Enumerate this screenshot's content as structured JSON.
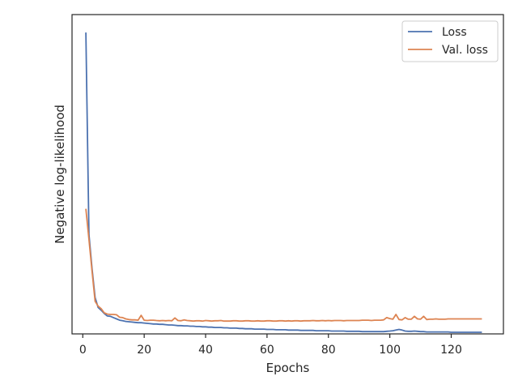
{
  "chart_data": {
    "type": "line",
    "title": "",
    "xlabel": "Epochs",
    "ylabel": "Negative log-likelihood",
    "xlim": [
      -3.5,
      137
    ],
    "ylim": [
      0,
      1
    ],
    "yticks_visible": false,
    "xticks": [
      0,
      20,
      40,
      60,
      80,
      100,
      120
    ],
    "grid": false,
    "legend": {
      "placement": "top-right"
    },
    "x": [
      1,
      2,
      3,
      4,
      5,
      6,
      7,
      8,
      9,
      10,
      11,
      12,
      13,
      14,
      15,
      16,
      17,
      18,
      19,
      20,
      21,
      22,
      23,
      24,
      25,
      26,
      27,
      28,
      29,
      30,
      31,
      32,
      33,
      34,
      35,
      36,
      37,
      38,
      39,
      40,
      41,
      42,
      43,
      44,
      45,
      46,
      47,
      48,
      49,
      50,
      51,
      52,
      53,
      54,
      55,
      56,
      57,
      58,
      59,
      60,
      61,
      62,
      63,
      64,
      65,
      66,
      67,
      68,
      69,
      70,
      71,
      72,
      73,
      74,
      75,
      76,
      77,
      78,
      79,
      80,
      81,
      82,
      83,
      84,
      85,
      86,
      87,
      88,
      89,
      90,
      91,
      92,
      93,
      94,
      95,
      96,
      97,
      98,
      99,
      100,
      101,
      102,
      103,
      104,
      105,
      106,
      107,
      108,
      109,
      110,
      111,
      112,
      113,
      114,
      115,
      116,
      117,
      118,
      119,
      120,
      121,
      122,
      123,
      124,
      125,
      126,
      127,
      128,
      129,
      130
    ],
    "series": [
      {
        "name": "Loss",
        "color": "#4c72b0",
        "values": [
          0.944,
          0.312,
          0.205,
          0.114,
          0.083,
          0.074,
          0.064,
          0.056,
          0.055,
          0.051,
          0.047,
          0.043,
          0.041,
          0.039,
          0.038,
          0.037,
          0.036,
          0.035,
          0.035,
          0.034,
          0.033,
          0.032,
          0.031,
          0.031,
          0.03,
          0.03,
          0.029,
          0.028,
          0.028,
          0.027,
          0.026,
          0.026,
          0.025,
          0.025,
          0.024,
          0.024,
          0.023,
          0.023,
          0.022,
          0.022,
          0.021,
          0.021,
          0.02,
          0.02,
          0.02,
          0.019,
          0.019,
          0.018,
          0.018,
          0.018,
          0.017,
          0.017,
          0.016,
          0.016,
          0.016,
          0.015,
          0.015,
          0.015,
          0.015,
          0.014,
          0.014,
          0.014,
          0.013,
          0.013,
          0.013,
          0.013,
          0.012,
          0.012,
          0.012,
          0.012,
          0.011,
          0.011,
          0.011,
          0.011,
          0.011,
          0.01,
          0.01,
          0.01,
          0.01,
          0.01,
          0.009,
          0.009,
          0.009,
          0.009,
          0.009,
          0.008,
          0.008,
          0.008,
          0.008,
          0.008,
          0.007,
          0.007,
          0.007,
          0.007,
          0.007,
          0.007,
          0.007,
          0.007,
          0.008,
          0.009,
          0.01,
          0.012,
          0.014,
          0.012,
          0.009,
          0.008,
          0.008,
          0.009,
          0.008,
          0.007,
          0.007,
          0.006,
          0.006,
          0.006,
          0.006,
          0.006,
          0.006,
          0.006,
          0.006,
          0.005,
          0.005,
          0.005,
          0.005,
          0.005,
          0.005,
          0.005,
          0.005,
          0.005,
          0.005,
          0.005
        ]
      },
      {
        "name": "Val. loss",
        "color": "#dd8452",
        "values": [
          0.392,
          0.296,
          0.197,
          0.102,
          0.087,
          0.079,
          0.066,
          0.062,
          0.061,
          0.061,
          0.06,
          0.052,
          0.051,
          0.047,
          0.045,
          0.044,
          0.044,
          0.043,
          0.058,
          0.043,
          0.042,
          0.043,
          0.043,
          0.042,
          0.041,
          0.042,
          0.041,
          0.042,
          0.041,
          0.05,
          0.042,
          0.041,
          0.044,
          0.042,
          0.041,
          0.04,
          0.041,
          0.041,
          0.04,
          0.042,
          0.041,
          0.04,
          0.041,
          0.041,
          0.042,
          0.04,
          0.04,
          0.04,
          0.041,
          0.041,
          0.04,
          0.04,
          0.041,
          0.041,
          0.04,
          0.04,
          0.041,
          0.04,
          0.04,
          0.041,
          0.041,
          0.04,
          0.04,
          0.041,
          0.041,
          0.04,
          0.041,
          0.04,
          0.041,
          0.041,
          0.04,
          0.041,
          0.041,
          0.041,
          0.042,
          0.041,
          0.041,
          0.042,
          0.041,
          0.042,
          0.041,
          0.042,
          0.042,
          0.042,
          0.041,
          0.042,
          0.042,
          0.042,
          0.042,
          0.042,
          0.043,
          0.043,
          0.043,
          0.042,
          0.043,
          0.043,
          0.043,
          0.044,
          0.051,
          0.048,
          0.046,
          0.061,
          0.045,
          0.044,
          0.051,
          0.046,
          0.046,
          0.055,
          0.047,
          0.046,
          0.055,
          0.045,
          0.046,
          0.046,
          0.047,
          0.046,
          0.046,
          0.046,
          0.047,
          0.047,
          0.047,
          0.047,
          0.047,
          0.047,
          0.047,
          0.047,
          0.047,
          0.047,
          0.047,
          0.047
        ]
      }
    ]
  }
}
